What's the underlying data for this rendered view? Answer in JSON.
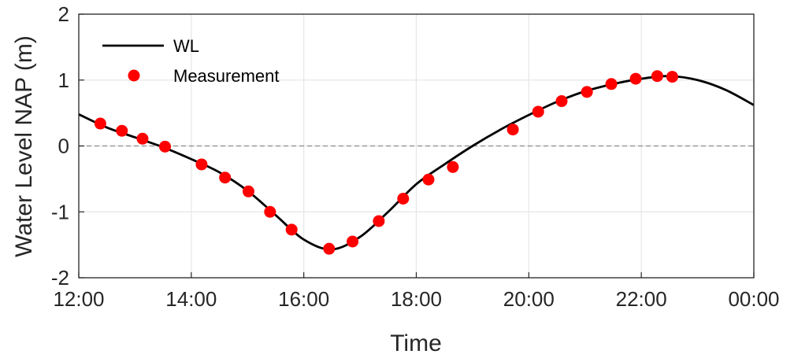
{
  "chart_data": {
    "type": "line",
    "xlabel": "Time",
    "ylabel": "Water Level NAP (m)",
    "xlim": [
      "12:00",
      "00:00"
    ],
    "ylim": [
      -2,
      2
    ],
    "x_ticks": [
      "12:00",
      "14:00",
      "16:00",
      "18:00",
      "20:00",
      "22:00",
      "00:00"
    ],
    "y_ticks": [
      "-2",
      "-1",
      "0",
      "1",
      "2"
    ],
    "grid": true,
    "zero_reference_line": "dashed",
    "legend_position": "top-left",
    "legend": [
      "WL",
      "Measurement"
    ],
    "colors": {
      "line": "#000000",
      "measurement": "#ff0000",
      "grid": "#e6e6e6",
      "reference": "#8c8c8c"
    },
    "series": [
      {
        "name": "WL",
        "type": "line",
        "x": [
          "12:00",
          "12:30",
          "13:00",
          "13:30",
          "14:00",
          "14:30",
          "15:00",
          "15:30",
          "16:00",
          "16:30",
          "17:00",
          "17:30",
          "18:00",
          "18:30",
          "19:00",
          "19:30",
          "20:00",
          "20:30",
          "21:00",
          "21:30",
          "22:00",
          "22:30",
          "23:00",
          "23:30",
          "00:00"
        ],
        "values": [
          0.48,
          0.28,
          0.13,
          -0.02,
          -0.2,
          -0.4,
          -0.68,
          -1.05,
          -1.42,
          -1.57,
          -1.38,
          -1.0,
          -0.58,
          -0.28,
          0.0,
          0.25,
          0.47,
          0.67,
          0.83,
          0.94,
          1.02,
          1.06,
          1.0,
          0.85,
          0.62
        ]
      },
      {
        "name": "Measurement",
        "type": "scatter",
        "x": [
          "12:23",
          "12:46",
          "13:08",
          "13:32",
          "14:11",
          "14:36",
          "15:01",
          "15:24",
          "15:47",
          "16:27",
          "16:52",
          "17:20",
          "17:46",
          "18:13",
          "18:39",
          "19:43",
          "20:10",
          "20:35",
          "21:02",
          "21:28",
          "21:54",
          "22:17",
          "22:33"
        ],
        "values": [
          0.34,
          0.23,
          0.11,
          -0.01,
          -0.28,
          -0.48,
          -0.69,
          -1.0,
          -1.27,
          -1.56,
          -1.45,
          -1.14,
          -0.8,
          -0.51,
          -0.32,
          0.25,
          0.52,
          0.68,
          0.82,
          0.94,
          1.02,
          1.06,
          1.05
        ]
      }
    ]
  }
}
